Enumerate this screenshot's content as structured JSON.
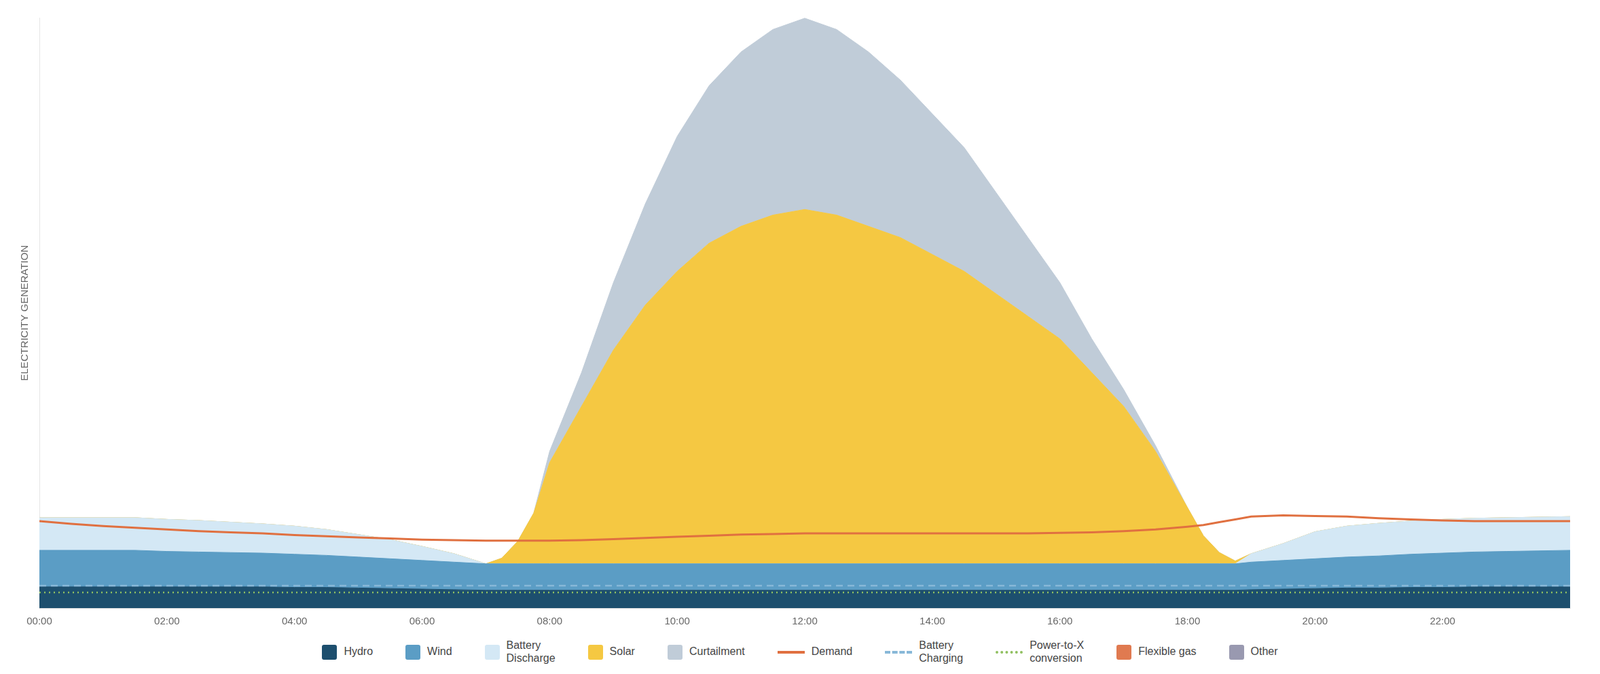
{
  "chart_data": {
    "type": "area",
    "ylabel": "ELECTRICITY GENERATION",
    "stacked": true,
    "grid": false,
    "legend": "bottom",
    "tick_labels": "x",
    "x": [
      0,
      0.5,
      1,
      1.5,
      2,
      2.5,
      3,
      3.5,
      4,
      4.5,
      5,
      5.5,
      6,
      6.5,
      7,
      7.25,
      7.5,
      7.75,
      8,
      8.5,
      9,
      9.5,
      10,
      10.5,
      11,
      11.5,
      12,
      12.5,
      13,
      13.5,
      14,
      14.5,
      15,
      15.5,
      16,
      16.5,
      17,
      17.5,
      18,
      18.25,
      18.5,
      18.75,
      19,
      19.5,
      20,
      20.5,
      21,
      21.5,
      22,
      22.5,
      23,
      23.5,
      24
    ],
    "xlim": [
      0,
      24
    ],
    "xticks": [
      {
        "value": 0,
        "label": "00:00"
      },
      {
        "value": 2,
        "label": "02:00"
      },
      {
        "value": 4,
        "label": "04:00"
      },
      {
        "value": 6,
        "label": "06:00"
      },
      {
        "value": 8,
        "label": "08:00"
      },
      {
        "value": 10,
        "label": "10:00"
      },
      {
        "value": 12,
        "label": "12:00"
      },
      {
        "value": 14,
        "label": "14:00"
      },
      {
        "value": 16,
        "label": "16:00"
      },
      {
        "value": 18,
        "label": "18:00"
      },
      {
        "value": 20,
        "label": "20:00"
      },
      {
        "value": 22,
        "label": "22:00"
      }
    ],
    "ylim": [
      0.0,
      1.05
    ],
    "yticks": [],
    "series": [
      {
        "name": "Hydro",
        "type": "area",
        "color": "#1d4f6e",
        "values": [
          0.038,
          0.038,
          0.038,
          0.038,
          0.038,
          0.038,
          0.038,
          0.038,
          0.037,
          0.037,
          0.036,
          0.035,
          0.034,
          0.033,
          0.032,
          0.032,
          0.032,
          0.032,
          0.032,
          0.032,
          0.032,
          0.032,
          0.032,
          0.032,
          0.032,
          0.032,
          0.032,
          0.032,
          0.032,
          0.032,
          0.032,
          0.032,
          0.032,
          0.032,
          0.032,
          0.032,
          0.032,
          0.032,
          0.032,
          0.032,
          0.032,
          0.032,
          0.033,
          0.034,
          0.035,
          0.036,
          0.036,
          0.037,
          0.037,
          0.038,
          0.038,
          0.038,
          0.038
        ]
      },
      {
        "name": "Wind",
        "type": "area",
        "color": "#5b9dc5",
        "values": [
          0.065,
          0.065,
          0.065,
          0.065,
          0.063,
          0.062,
          0.061,
          0.06,
          0.059,
          0.057,
          0.055,
          0.053,
          0.051,
          0.049,
          0.047,
          0.047,
          0.047,
          0.047,
          0.047,
          0.047,
          0.047,
          0.047,
          0.047,
          0.047,
          0.047,
          0.047,
          0.047,
          0.047,
          0.047,
          0.047,
          0.047,
          0.047,
          0.047,
          0.047,
          0.047,
          0.047,
          0.047,
          0.047,
          0.047,
          0.047,
          0.047,
          0.047,
          0.049,
          0.051,
          0.053,
          0.055,
          0.057,
          0.059,
          0.061,
          0.062,
          0.063,
          0.064,
          0.065
        ]
      },
      {
        "name": "Battery\nDischarge",
        "type": "area",
        "color": "#d4e8f5",
        "values": [
          0.058,
          0.058,
          0.058,
          0.058,
          0.057,
          0.056,
          0.054,
          0.052,
          0.05,
          0.046,
          0.04,
          0.034,
          0.025,
          0.015,
          0.0,
          0.0,
          0.0,
          0.0,
          0.0,
          0.0,
          0.0,
          0.0,
          0.0,
          0.0,
          0.0,
          0.0,
          0.0,
          0.0,
          0.0,
          0.0,
          0.0,
          0.0,
          0.0,
          0.0,
          0.0,
          0.0,
          0.0,
          0.0,
          0.0,
          0.0,
          0.0,
          0.0,
          0.015,
          0.03,
          0.048,
          0.055,
          0.058,
          0.059,
          0.06,
          0.06,
          0.06,
          0.06,
          0.06
        ]
      },
      {
        "name": "Solar",
        "type": "area",
        "color": "#f5c842",
        "values": [
          0.0,
          0.0,
          0.0,
          0.0,
          0.0,
          0.0,
          0.0,
          0.0,
          0.0,
          0.0,
          0.0,
          0.0,
          0.0,
          0.0,
          0.0,
          0.01,
          0.04,
          0.09,
          0.18,
          0.28,
          0.38,
          0.46,
          0.52,
          0.57,
          0.6,
          0.62,
          0.63,
          0.62,
          0.6,
          0.58,
          0.55,
          0.52,
          0.48,
          0.44,
          0.4,
          0.34,
          0.28,
          0.2,
          0.1,
          0.05,
          0.02,
          0.005,
          0.0,
          0.0,
          0.0,
          0.0,
          0.0,
          0.0,
          0.0,
          0.0,
          0.0,
          0.0,
          0.0
        ]
      },
      {
        "name": "Curtailment",
        "type": "area",
        "color": "#c0ccd8",
        "values": [
          0.0,
          0.0,
          0.0,
          0.0,
          0.0,
          0.0,
          0.0,
          0.0,
          0.0,
          0.0,
          0.0,
          0.0,
          0.0,
          0.0,
          0.0,
          0.0,
          0.0,
          0.0,
          0.02,
          0.06,
          0.12,
          0.18,
          0.24,
          0.28,
          0.31,
          0.33,
          0.34,
          0.33,
          0.31,
          0.28,
          0.25,
          0.22,
          0.18,
          0.14,
          0.1,
          0.06,
          0.03,
          0.01,
          0.0,
          0.0,
          0.0,
          0.0,
          0.0,
          0.0,
          0.0,
          0.0,
          0.0,
          0.0,
          0.0,
          0.0,
          0.0,
          0.0,
          0.0
        ]
      },
      {
        "name": "Demand",
        "type": "line",
        "line_style": "solid",
        "color": "#e07040",
        "values": [
          0.155,
          0.15,
          0.146,
          0.143,
          0.14,
          0.137,
          0.135,
          0.133,
          0.13,
          0.128,
          0.126,
          0.124,
          0.122,
          0.121,
          0.12,
          0.12,
          0.12,
          0.12,
          0.12,
          0.121,
          0.123,
          0.125,
          0.127,
          0.129,
          0.131,
          0.132,
          0.133,
          0.133,
          0.133,
          0.133,
          0.133,
          0.133,
          0.133,
          0.133,
          0.134,
          0.135,
          0.137,
          0.14,
          0.145,
          0.148,
          0.153,
          0.158,
          0.163,
          0.165,
          0.164,
          0.163,
          0.16,
          0.158,
          0.156,
          0.155,
          0.155,
          0.155,
          0.155
        ]
      },
      {
        "name": "Battery\nCharging",
        "type": "line",
        "line_style": "dashed",
        "color": "#88b8d8",
        "values": [
          0.04,
          0.04,
          0.04,
          0.04,
          0.04,
          0.04,
          0.04,
          0.04,
          0.04,
          0.04,
          0.04,
          0.04,
          0.04,
          0.04,
          0.04,
          0.04,
          0.04,
          0.04,
          0.04,
          0.04,
          0.04,
          0.04,
          0.04,
          0.04,
          0.04,
          0.04,
          0.04,
          0.04,
          0.04,
          0.04,
          0.04,
          0.04,
          0.04,
          0.04,
          0.04,
          0.04,
          0.04,
          0.04,
          0.04,
          0.04,
          0.04,
          0.04,
          0.04,
          0.04,
          0.04,
          0.04,
          0.04,
          0.04,
          0.04,
          0.04,
          0.04,
          0.04,
          0.04
        ]
      },
      {
        "name": "Power-to-X\nconversion",
        "type": "line",
        "line_style": "dotted",
        "color": "#90c060",
        "values": [
          0.028,
          0.028,
          0.028,
          0.028,
          0.028,
          0.028,
          0.028,
          0.028,
          0.028,
          0.028,
          0.028,
          0.028,
          0.028,
          0.028,
          0.028,
          0.028,
          0.028,
          0.028,
          0.028,
          0.028,
          0.028,
          0.028,
          0.028,
          0.028,
          0.028,
          0.028,
          0.028,
          0.028,
          0.028,
          0.028,
          0.028,
          0.028,
          0.028,
          0.028,
          0.028,
          0.028,
          0.028,
          0.028,
          0.028,
          0.028,
          0.028,
          0.028,
          0.028,
          0.028,
          0.028,
          0.028,
          0.028,
          0.028,
          0.028,
          0.028,
          0.028,
          0.028,
          0.028
        ]
      },
      {
        "name": "Flexible gas",
        "type": "area",
        "color": "#e07a50",
        "values": [
          null,
          null,
          null,
          null,
          null,
          null,
          null,
          null,
          null,
          null,
          null,
          null,
          null,
          null,
          null,
          null,
          null,
          null,
          null,
          null,
          null,
          null,
          null,
          null,
          null,
          null,
          null,
          null,
          null,
          null,
          null,
          null,
          null,
          null,
          null,
          null,
          null,
          null,
          null,
          null,
          null,
          null,
          null,
          null,
          null,
          null,
          null,
          null,
          null,
          null,
          null,
          null,
          null
        ]
      },
      {
        "name": "Other",
        "type": "area",
        "color": "#9999b0",
        "values": [
          null,
          null,
          null,
          null,
          null,
          null,
          null,
          null,
          null,
          null,
          null,
          null,
          null,
          null,
          null,
          null,
          null,
          null,
          null,
          null,
          null,
          null,
          null,
          null,
          null,
          null,
          null,
          null,
          null,
          null,
          null,
          null,
          null,
          null,
          null,
          null,
          null,
          null,
          null,
          null,
          null,
          null,
          null,
          null,
          null,
          null,
          null,
          null,
          null,
          null,
          null,
          null,
          null
        ]
      }
    ]
  }
}
